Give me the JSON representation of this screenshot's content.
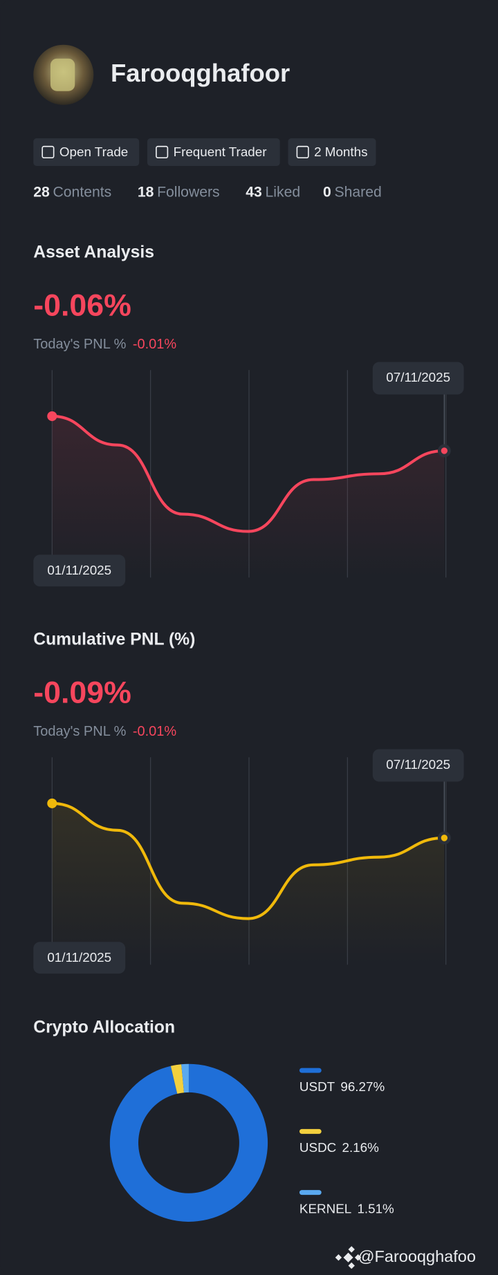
{
  "profile": {
    "name": "Farooqghafoor",
    "badges": [
      "Open Trade",
      "Frequent Trader",
      "2 Months"
    ],
    "stats": [
      {
        "value": 28,
        "label": "Contents"
      },
      {
        "value": 18,
        "label": "Followers"
      },
      {
        "value": 43,
        "label": "Liked"
      },
      {
        "value": 0,
        "label": "Shared"
      }
    ]
  },
  "chart_data": [
    {
      "type": "line",
      "title": "Asset Analysis",
      "headline": "-0.06%",
      "subtitle": "Today's PNL %",
      "today_pnl": "-0.01%",
      "categories": [
        "01/11/2025",
        null,
        null,
        null,
        null,
        null,
        "07/11/2025"
      ],
      "values": [
        0,
        -0.05,
        -0.17,
        -0.2,
        -0.11,
        -0.1,
        -0.06
      ],
      "color": "#f6465d",
      "ylim": [
        -0.28,
        0.08
      ]
    },
    {
      "type": "line",
      "title": "Cumulative PNL (%)",
      "headline": "-0.09%",
      "subtitle": "Today's PNL %",
      "today_pnl": "-0.01%",
      "categories": [
        "01/11/2025",
        null,
        null,
        null,
        null,
        null,
        "07/11/2025"
      ],
      "values": [
        0,
        -0.07,
        -0.26,
        -0.3,
        -0.16,
        -0.14,
        -0.09
      ],
      "color": "#f0b90b",
      "ylim": [
        -0.42,
        0.12
      ]
    },
    {
      "type": "pie",
      "title": "Crypto Allocation",
      "categories": [
        "USDT",
        "USDC",
        "KERNEL"
      ],
      "values": [
        96.27,
        2.16,
        1.51
      ],
      "value_labels": [
        "96.27%",
        "2.16%",
        "1.51%"
      ],
      "colors": [
        "#1f6fd8",
        "#f3d03e",
        "#5aa9f0"
      ]
    }
  ],
  "watermark": "@Farooqghafoo"
}
